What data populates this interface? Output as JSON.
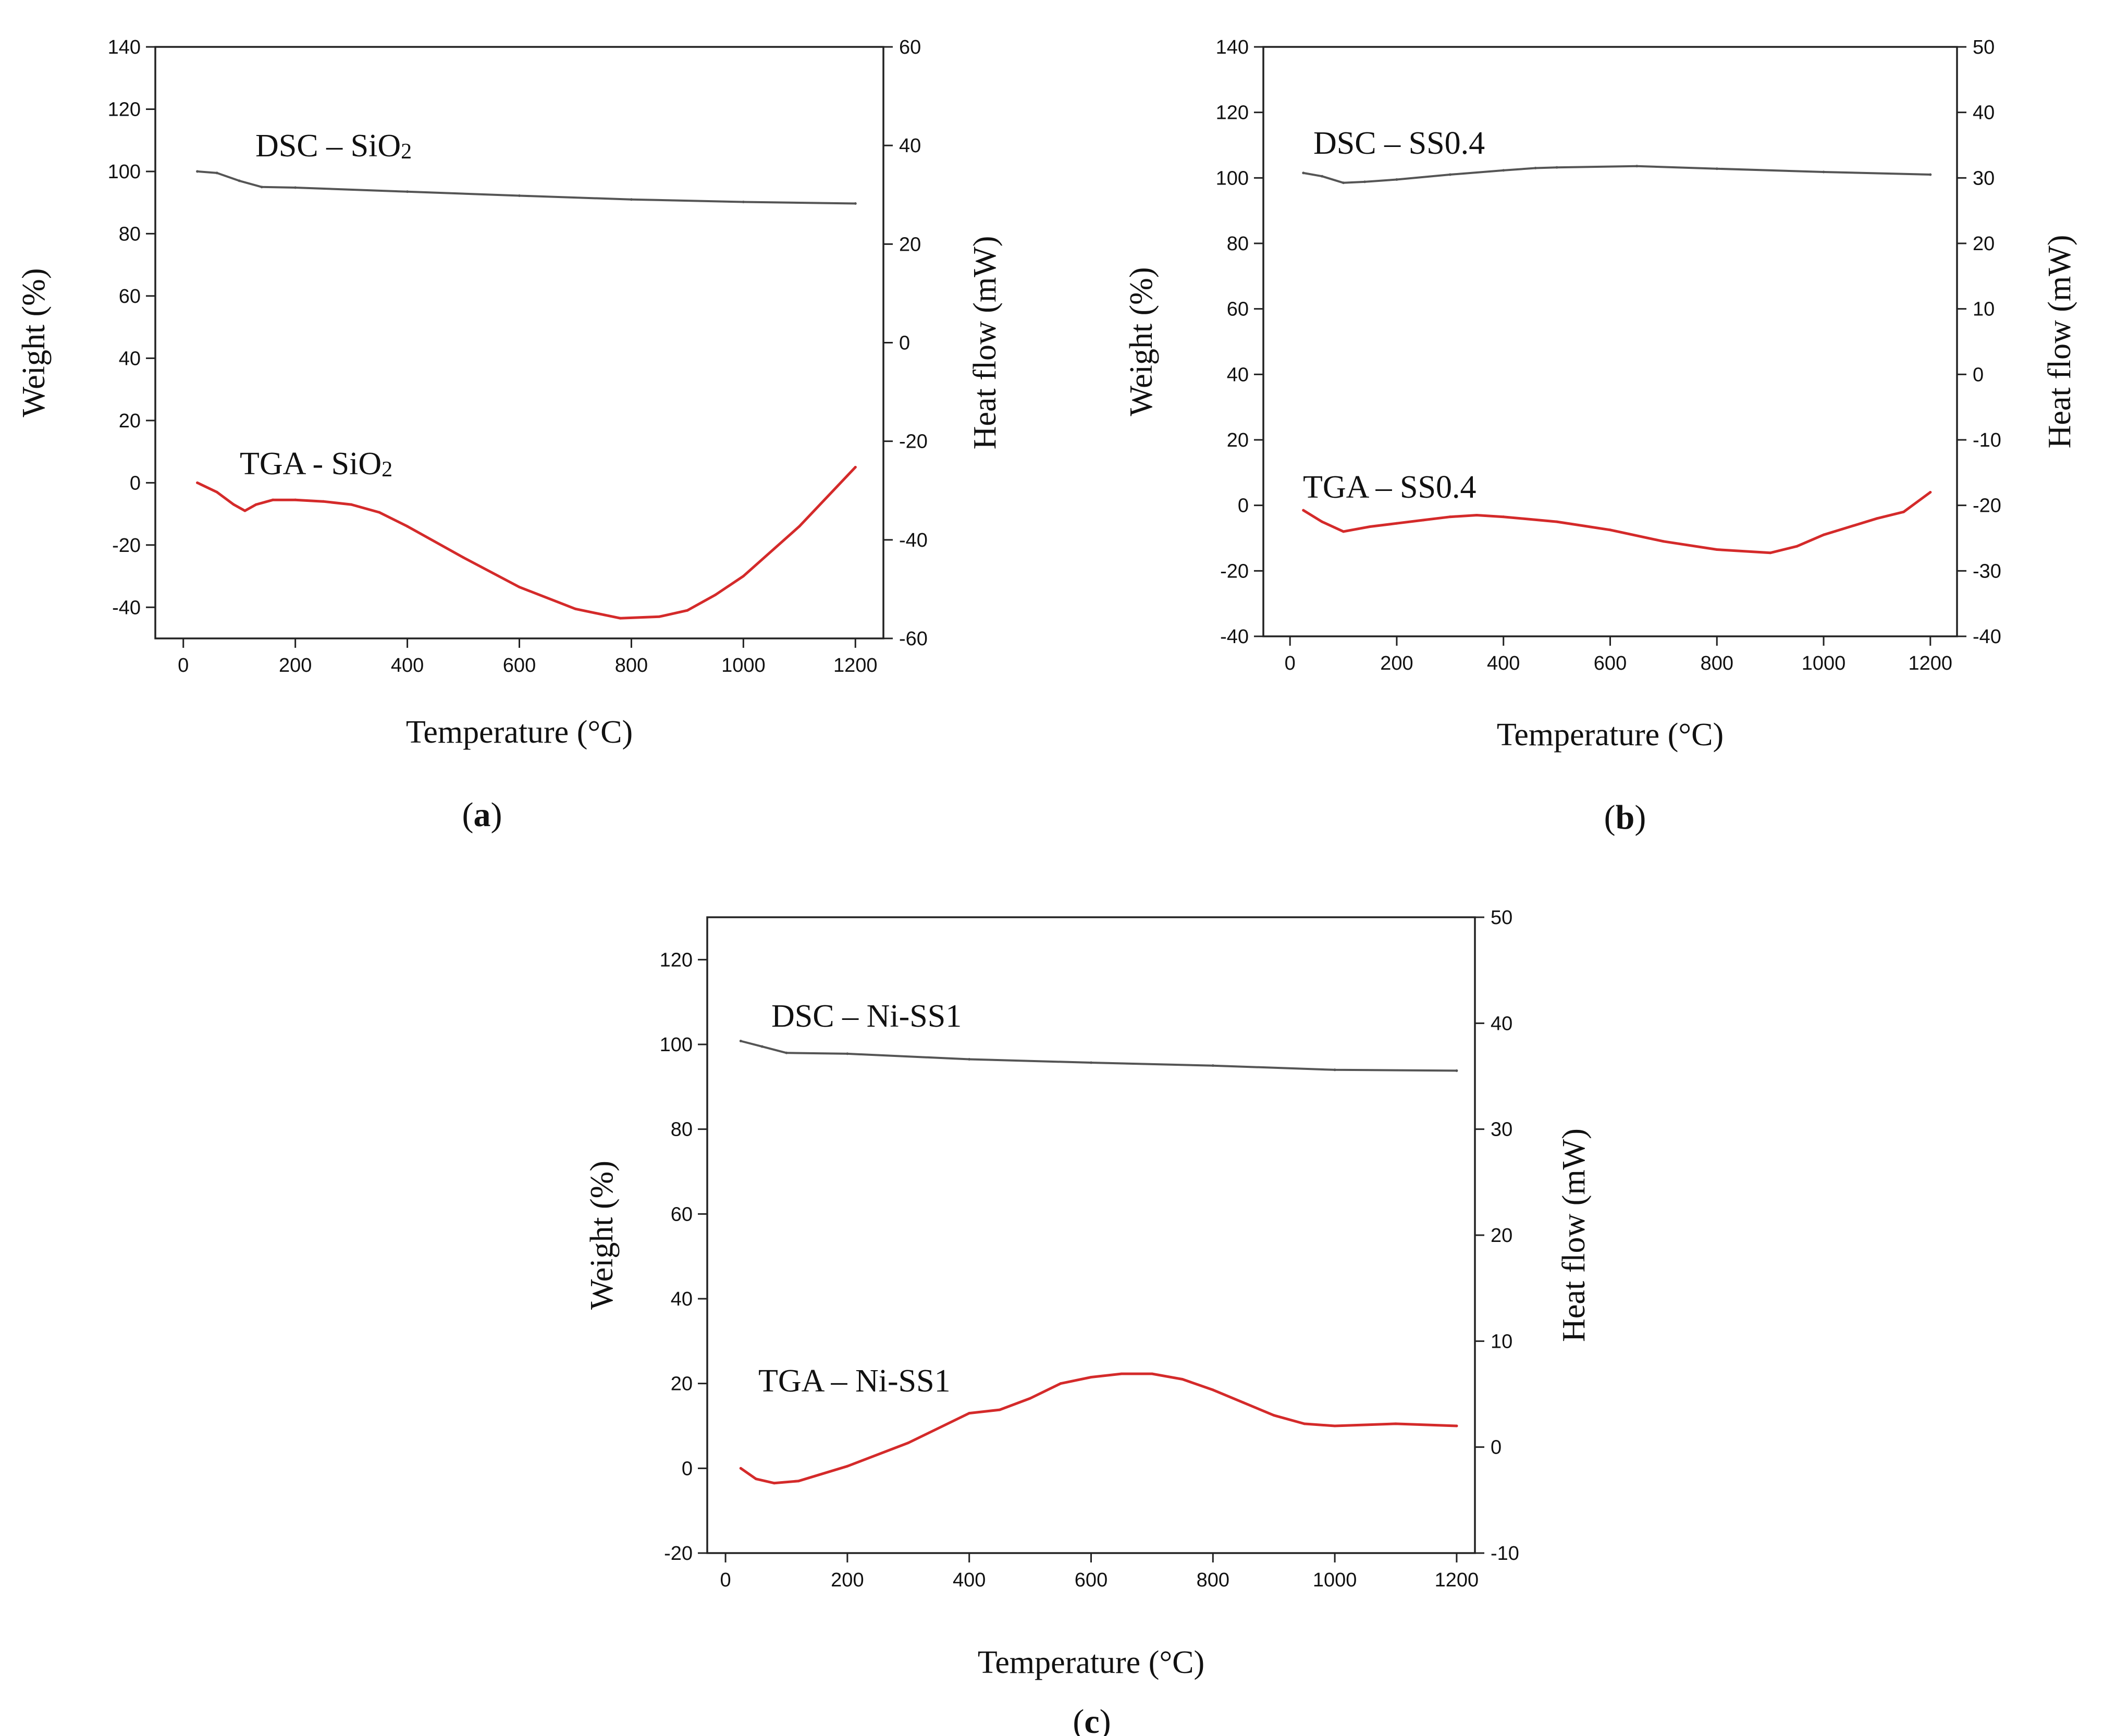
{
  "figure": {
    "panels": [
      {
        "id": "a",
        "label_open": "(",
        "label_letter": "a",
        "label_close": ")",
        "chart_type": "line"
      },
      {
        "id": "b",
        "label_open": "(",
        "label_letter": "b",
        "label_close": ")",
        "chart_type": "line"
      },
      {
        "id": "c",
        "label_open": "(",
        "label_letter": "c",
        "label_close": ")",
        "chart_type": "line"
      }
    ]
  },
  "chart_data": [
    {
      "type": "line",
      "panel": "a",
      "xlabel": "Temperature (°C)",
      "ylabel": "Weight (%)",
      "y2label": "Heat flow (mW)",
      "xlim": [
        -50,
        1250
      ],
      "ylim": [
        -50,
        140
      ],
      "y2lim": [
        -60,
        60
      ],
      "xticks": [
        0,
        200,
        400,
        600,
        800,
        1000,
        1200
      ],
      "yticks": [
        -40,
        -20,
        0,
        20,
        40,
        60,
        80,
        100,
        120,
        140
      ],
      "y2ticks": [
        -60,
        -40,
        -20,
        0,
        20,
        40,
        60
      ],
      "y2tick_labels": [
        "-60",
        "-40",
        "-20",
        "0",
        "20",
        "40",
        "60"
      ],
      "series": [
        {
          "name": "DSC – SiO2",
          "label_main": "DSC – SiO",
          "label_sub": "2",
          "color": "#555555",
          "axis": "left",
          "x": [
            25,
            60,
            100,
            140,
            200,
            400,
            600,
            800,
            1000,
            1200
          ],
          "y": [
            100,
            99.5,
            97,
            95,
            94.8,
            93.5,
            92.2,
            91,
            90.2,
            89.7
          ]
        },
        {
          "name": "TGA - SiO2",
          "label_main": "TGA - SiO",
          "label_sub": "2",
          "color": "#d42a2a",
          "axis": "left",
          "x": [
            25,
            60,
            90,
            110,
            130,
            160,
            200,
            250,
            300,
            350,
            400,
            500,
            600,
            700,
            780,
            850,
            900,
            950,
            1000,
            1100,
            1200
          ],
          "y": [
            0,
            -3,
            -7,
            -9,
            -7,
            -5.5,
            -5.5,
            -6,
            -7,
            -9.5,
            -14,
            -24,
            -33.5,
            -40.5,
            -43.5,
            -43,
            -41,
            -36,
            -30,
            -14,
            5
          ]
        }
      ]
    },
    {
      "type": "line",
      "panel": "b",
      "xlabel": "Temperature (°C)",
      "ylabel": "Weight (%)",
      "y2label": "Heat flow (mW)",
      "xlim": [
        -50,
        1250
      ],
      "ylim": [
        -40,
        140
      ],
      "y2lim": [
        -40,
        50
      ],
      "xticks": [
        0,
        200,
        400,
        600,
        800,
        1000,
        1200
      ],
      "yticks": [
        -40,
        -20,
        0,
        20,
        40,
        60,
        80,
        100,
        120,
        140
      ],
      "y2ticks": [
        -40,
        -30,
        -20,
        -10,
        0,
        10,
        20,
        30,
        40,
        50
      ],
      "y2tick_labels": [
        "-40",
        "-30",
        "-20",
        "-10",
        "0",
        "10",
        "20",
        "30",
        "40",
        "50"
      ],
      "series": [
        {
          "name": "DSC – SS0.4",
          "label_main": "DSC – SS0.4",
          "label_sub": "",
          "color": "#555555",
          "axis": "left",
          "x": [
            25,
            60,
            100,
            140,
            200,
            300,
            400,
            460,
            500,
            650,
            800,
            1000,
            1200
          ],
          "y": [
            101.5,
            100.5,
            98.5,
            98.8,
            99.5,
            101,
            102.3,
            103,
            103.2,
            103.6,
            102.8,
            101.8,
            101
          ]
        },
        {
          "name": "TGA – SS0.4",
          "label_main": "TGA – SS0.4",
          "label_sub": "",
          "color": "#d42a2a",
          "axis": "left",
          "x": [
            25,
            60,
            100,
            150,
            200,
            250,
            300,
            350,
            400,
            500,
            600,
            700,
            800,
            900,
            950,
            1000,
            1100,
            1150,
            1200
          ],
          "y": [
            -1.5,
            -5,
            -8,
            -6.5,
            -5.5,
            -4.5,
            -3.5,
            -3,
            -3.5,
            -5,
            -7.5,
            -11,
            -13.5,
            -14.5,
            -12.5,
            -9,
            -4,
            -2,
            4
          ]
        }
      ]
    },
    {
      "type": "line",
      "panel": "c",
      "xlabel": "Temperature (°C)",
      "ylabel": "Weight (%)",
      "y2label": "Heat flow (mW)",
      "xlim": [
        -30,
        1230
      ],
      "ylim": [
        -20,
        130
      ],
      "y2lim": [
        -10,
        50
      ],
      "xticks": [
        0,
        200,
        400,
        600,
        800,
        1000,
        1200
      ],
      "yticks": [
        -20,
        0,
        20,
        40,
        60,
        80,
        100,
        120
      ],
      "y2ticks": [
        -10,
        0,
        10,
        20,
        30,
        40,
        50
      ],
      "y2tick_labels": [
        "-10",
        "0",
        "10",
        "20",
        "30",
        "40",
        "50"
      ],
      "series": [
        {
          "name": "DSC – Ni-SS1",
          "label_main": "DSC – Ni-SS1",
          "label_sub": "",
          "color": "#555555",
          "axis": "left",
          "x": [
            25,
            60,
            100,
            200,
            400,
            600,
            800,
            1000,
            1200
          ],
          "y": [
            100.8,
            99.5,
            98,
            97.8,
            96.5,
            95.7,
            95,
            94,
            93.8
          ]
        },
        {
          "name": "TGA – Ni-SS1",
          "label_main": "TGA – Ni-SS1",
          "label_sub": "",
          "color": "#d42a2a",
          "axis": "left",
          "x": [
            25,
            50,
            80,
            120,
            200,
            300,
            400,
            450,
            500,
            550,
            600,
            650,
            700,
            750,
            800,
            850,
            900,
            950,
            1000,
            1100,
            1200
          ],
          "y": [
            0,
            -2.5,
            -3.5,
            -3,
            0.5,
            6,
            13,
            13.8,
            16.5,
            20,
            21.5,
            22.3,
            22.3,
            21,
            18.5,
            15.5,
            12.5,
            10.5,
            10,
            10.5,
            10
          ]
        }
      ]
    }
  ]
}
